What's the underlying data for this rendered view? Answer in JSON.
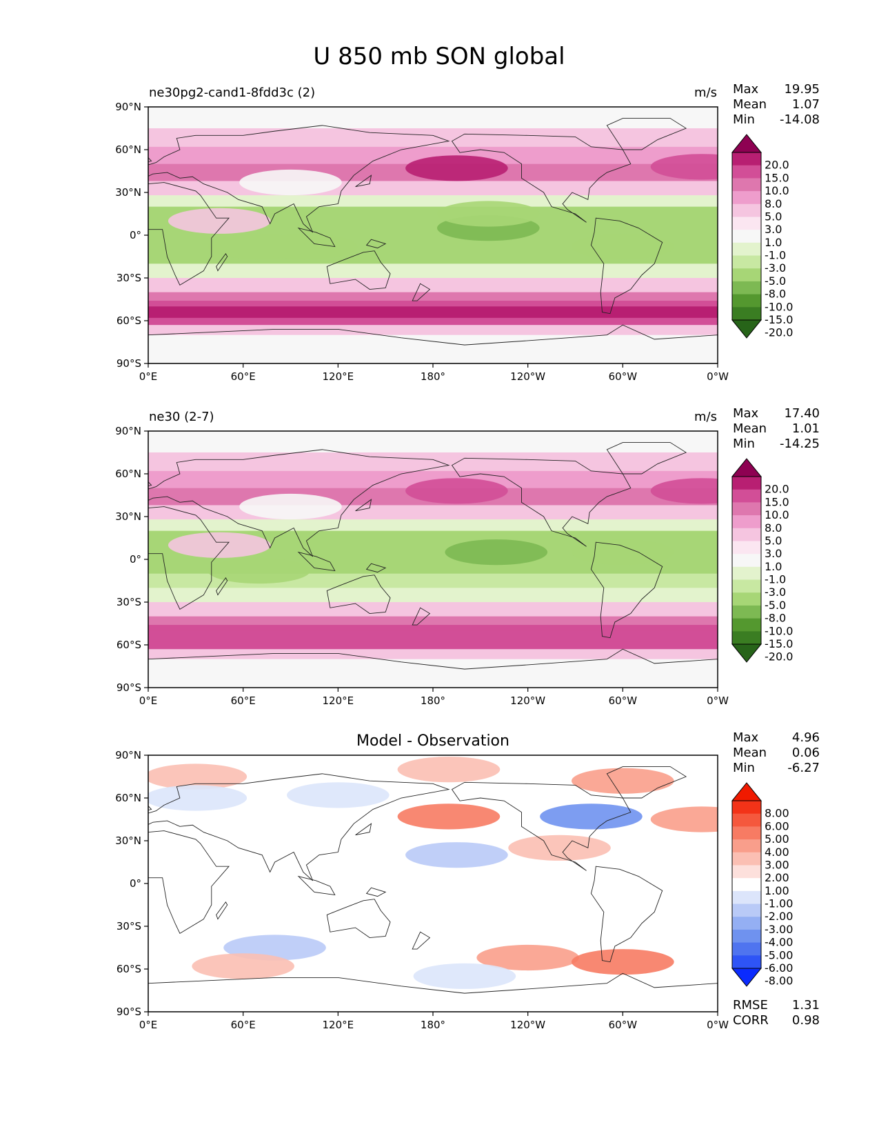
{
  "figure_title": "U 850 mb SON global",
  "colors": {
    "test_ref_levels": [
      "#276419",
      "#3a7d22",
      "#54982f",
      "#7db953",
      "#a7d676",
      "#c8e8a2",
      "#e3f3cd",
      "#f7f7f7",
      "#fbe6f1",
      "#f5c5e0",
      "#ee9dcc",
      "#de77ae",
      "#d24e97",
      "#b81f72",
      "#8e0152"
    ],
    "diff_levels": [
      "#0b2bfe",
      "#2e54f6",
      "#4f74ef",
      "#6f92ef",
      "#94aff3",
      "#b9caf7",
      "#dce5fb",
      "#ffffff",
      "#fde0dc",
      "#fbbfb3",
      "#f99e8b",
      "#f77b63",
      "#f5583d",
      "#f33318",
      "#f01a00"
    ]
  },
  "chart_data": [
    {
      "type": "heatmap",
      "title_left": "ne30pg2-cand1-8fdd3c (2)",
      "units": "m/s",
      "stats": {
        "Max": "19.95",
        "Mean": "1.07",
        "Min": "-14.08"
      },
      "colorbar_labels": [
        "20.0",
        "15.0",
        "10.0",
        "8.0",
        "5.0",
        "3.0",
        "1.0",
        "-1.0",
        "-3.0",
        "-5.0",
        "-8.0",
        "-10.0",
        "-15.0",
        "-20.0"
      ],
      "lon_ticks": [
        "0°E",
        "60°E",
        "120°E",
        "180°",
        "120°W",
        "60°W",
        "0°W"
      ],
      "lat_ticks": [
        "90°N",
        "60°N",
        "30°N",
        "0°",
        "30°S",
        "60°S",
        "90°S"
      ],
      "lon_range": [
        0,
        360
      ],
      "lat_range": [
        -90,
        90
      ],
      "zonal_mean_bands": [
        {
          "lat": [
            75,
            90
          ],
          "value": 0
        },
        {
          "lat": [
            62,
            75
          ],
          "value": 3
        },
        {
          "lat": [
            50,
            62
          ],
          "value": 6
        },
        {
          "lat": [
            38,
            50
          ],
          "value": 9
        },
        {
          "lat": [
            28,
            38
          ],
          "value": 4
        },
        {
          "lat": [
            20,
            28
          ],
          "value": -2
        },
        {
          "lat": [
            -10,
            20
          ],
          "value": -7
        },
        {
          "lat": [
            -20,
            -10
          ],
          "value": -6
        },
        {
          "lat": [
            -30,
            -20
          ],
          "value": -2
        },
        {
          "lat": [
            -40,
            -30
          ],
          "value": 3
        },
        {
          "lat": [
            -46,
            -40
          ],
          "value": 9
        },
        {
          "lat": [
            -50,
            -46
          ],
          "value": 12
        },
        {
          "lat": [
            -58,
            -50
          ],
          "value": 16
        },
        {
          "lat": [
            -63,
            -58
          ],
          "value": 12
        },
        {
          "lat": [
            -70,
            -63
          ],
          "value": 3
        },
        {
          "lat": [
            -90,
            -70
          ],
          "value": -1
        }
      ],
      "features": [
        {
          "lon": 195,
          "lat": 47,
          "value": 15
        },
        {
          "lon": 350,
          "lat": 48,
          "value": 12
        },
        {
          "lon": 215,
          "lat": 5,
          "value": -10
        },
        {
          "lon": 215,
          "lat": 15,
          "value": -8
        },
        {
          "lon": 70,
          "lat": -8,
          "value": -8
        },
        {
          "lon": 100,
          "lat": -8,
          "value": -8
        },
        {
          "lon": 300,
          "lat": -8,
          "value": -8
        },
        {
          "lon": 90,
          "lat": 37,
          "value": 0
        },
        {
          "lon": 45,
          "lat": 10,
          "value": 3
        }
      ]
    },
    {
      "type": "heatmap",
      "title_left": "ne30 (2-7)",
      "units": "m/s",
      "stats": {
        "Max": "17.40",
        "Mean": "1.01",
        "Min": "-14.25"
      },
      "colorbar_labels": [
        "20.0",
        "15.0",
        "10.0",
        "8.0",
        "5.0",
        "3.0",
        "1.0",
        "-1.0",
        "-3.0",
        "-5.0",
        "-8.0",
        "-10.0",
        "-15.0",
        "-20.0"
      ],
      "lon_ticks": [
        "0°E",
        "60°E",
        "120°E",
        "180°",
        "120°W",
        "60°W",
        "0°W"
      ],
      "lat_ticks": [
        "90°N",
        "60°N",
        "30°N",
        "0°",
        "30°S",
        "60°S",
        "90°S"
      ],
      "lon_range": [
        0,
        360
      ],
      "lat_range": [
        -90,
        90
      ],
      "zonal_mean_bands": [
        {
          "lat": [
            75,
            90
          ],
          "value": 0
        },
        {
          "lat": [
            62,
            75
          ],
          "value": 3
        },
        {
          "lat": [
            50,
            62
          ],
          "value": 6
        },
        {
          "lat": [
            38,
            50
          ],
          "value": 8
        },
        {
          "lat": [
            28,
            38
          ],
          "value": 4
        },
        {
          "lat": [
            20,
            28
          ],
          "value": -2
        },
        {
          "lat": [
            -10,
            20
          ],
          "value": -6
        },
        {
          "lat": [
            -20,
            -10
          ],
          "value": -5
        },
        {
          "lat": [
            -30,
            -20
          ],
          "value": -2
        },
        {
          "lat": [
            -40,
            -30
          ],
          "value": 3
        },
        {
          "lat": [
            -46,
            -40
          ],
          "value": 9
        },
        {
          "lat": [
            -50,
            -46
          ],
          "value": 12
        },
        {
          "lat": [
            -58,
            -50
          ],
          "value": 13
        },
        {
          "lat": [
            -63,
            -58
          ],
          "value": 11
        },
        {
          "lat": [
            -70,
            -63
          ],
          "value": 3
        },
        {
          "lat": [
            -90,
            -70
          ],
          "value": -1
        }
      ],
      "features": [
        {
          "lon": 195,
          "lat": 48,
          "value": 12
        },
        {
          "lon": 350,
          "lat": 48,
          "value": 10
        },
        {
          "lon": 220,
          "lat": 5,
          "value": -9
        },
        {
          "lon": 70,
          "lat": -8,
          "value": -7
        },
        {
          "lon": 300,
          "lat": 5,
          "value": -7
        },
        {
          "lon": 90,
          "lat": 37,
          "value": 0
        },
        {
          "lon": 45,
          "lat": 10,
          "value": 3
        }
      ]
    },
    {
      "type": "heatmap",
      "title_center": "Model - Observation",
      "stats": {
        "Max": "4.96",
        "Mean": "0.06",
        "Min": "-6.27"
      },
      "colorbar_labels": [
        "8.00",
        "6.00",
        "5.00",
        "4.00",
        "3.00",
        "2.00",
        "1.00",
        "-1.00",
        "-2.00",
        "-3.00",
        "-4.00",
        "-5.00",
        "-6.00",
        "-8.00"
      ],
      "metrics": {
        "RMSE": "1.31",
        "CORR": "0.98"
      },
      "lon_ticks": [
        "0°E",
        "60°E",
        "120°E",
        "180°",
        "120°W",
        "60°W",
        "0°W"
      ],
      "lat_ticks": [
        "90°N",
        "60°N",
        "30°N",
        "0°",
        "30°S",
        "60°S",
        "90°S"
      ],
      "lon_range": [
        0,
        360
      ],
      "lat_range": [
        -90,
        90
      ],
      "zonal_mean_bands": [
        {
          "lat": [
            -90,
            90
          ],
          "value": 0
        }
      ],
      "features": [
        {
          "lon": 30,
          "lat": 75,
          "value": 2
        },
        {
          "lon": 190,
          "lat": 80,
          "value": 2
        },
        {
          "lon": 300,
          "lat": 72,
          "value": 3
        },
        {
          "lon": 190,
          "lat": 47,
          "value": 4
        },
        {
          "lon": 280,
          "lat": 47,
          "value": -5
        },
        {
          "lon": 350,
          "lat": 45,
          "value": 3
        },
        {
          "lon": 195,
          "lat": 20,
          "value": -3
        },
        {
          "lon": 260,
          "lat": 25,
          "value": 2
        },
        {
          "lon": 80,
          "lat": -45,
          "value": -3
        },
        {
          "lon": 60,
          "lat": -58,
          "value": 2
        },
        {
          "lon": 240,
          "lat": -52,
          "value": 3
        },
        {
          "lon": 300,
          "lat": -55,
          "value": 4
        },
        {
          "lon": 200,
          "lat": -65,
          "value": -2
        },
        {
          "lon": 120,
          "lat": 62,
          "value": -2
        },
        {
          "lon": 30,
          "lat": 60,
          "value": -2
        }
      ]
    }
  ]
}
